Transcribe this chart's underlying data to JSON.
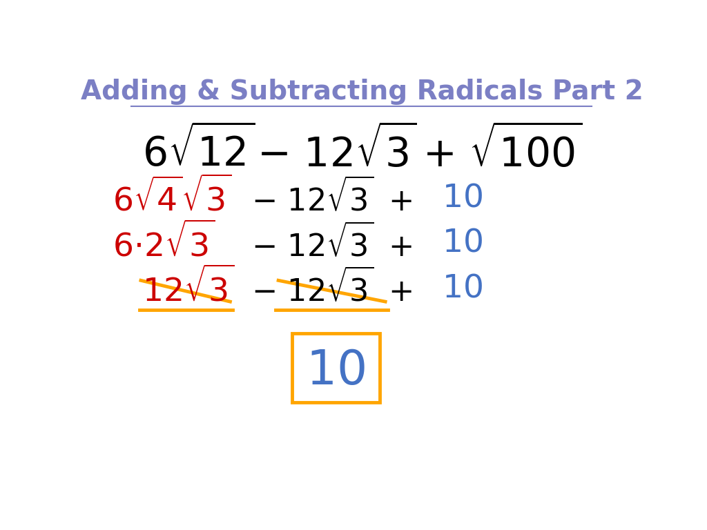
{
  "title": "Adding & Subtracting Radicals Part 2",
  "title_color": "#7B7FC4",
  "title_fontsize": 28,
  "bg_color": "#ffffff",
  "fig_width": 10.24,
  "fig_height": 7.68,
  "dpi": 100,
  "red_color": "#cc0000",
  "blue_color": "#4472C4",
  "orange_color": "#FFA500",
  "black_color": "#000000"
}
